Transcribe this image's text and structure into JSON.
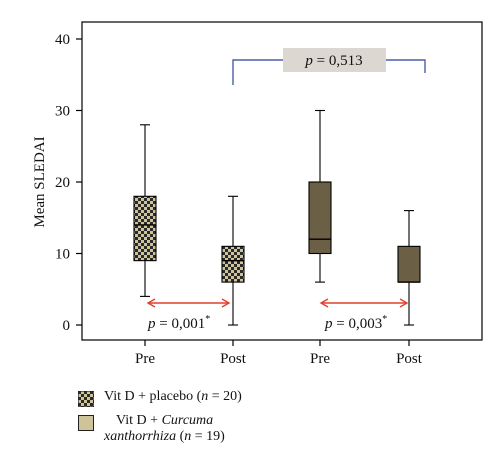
{
  "colors": {
    "checker_dark": "#2a2a2a",
    "checker_light": "#cfc39a",
    "olive": "#6b6045",
    "arrow_red": "#e0412f",
    "bracket_blue": "#4a5fa8",
    "pbox_fill": "#ddd7d2",
    "axis": "#000000"
  },
  "chart_data": {
    "type": "boxplot",
    "ylabel": "Mean SLEDAI",
    "ylim": [
      0,
      40
    ],
    "yticks": [
      0,
      10,
      20,
      30,
      40
    ],
    "categories": [
      "Pre",
      "Post",
      "Pre",
      "Post"
    ],
    "boxes": [
      {
        "group": "Vit D + placebo",
        "timepoint": "Pre",
        "min": 4,
        "q1": 9,
        "median": 14,
        "q3": 18,
        "max": 28
      },
      {
        "group": "Vit D + placebo",
        "timepoint": "Post",
        "min": 0,
        "q1": 6,
        "median": 9,
        "q3": 11,
        "max": 18
      },
      {
        "group": "Vit D + Curcuma xanthorrhiza",
        "timepoint": "Pre",
        "min": 6,
        "q1": 10,
        "median": 12,
        "q3": 20,
        "max": 30
      },
      {
        "group": "Vit D + Curcuma xanthorrhiza",
        "timepoint": "Post",
        "min": 0,
        "q1": 6,
        "median": 6,
        "q3": 11,
        "max": 16
      }
    ],
    "annotations": [
      {
        "id": "p1",
        "text": "= 0,001",
        "sup": "*",
        "between": [
          "Pre",
          "Post"
        ],
        "group": 1
      },
      {
        "id": "p2",
        "text": "= 0,003",
        "sup": "*",
        "between": [
          "Pre",
          "Post"
        ],
        "group": 2
      },
      {
        "id": "p3",
        "text": "= 0,513",
        "between": [
          "Post group 1",
          "Post group 2"
        ]
      }
    ],
    "legend": [
      {
        "label": "Vit D + placebo (",
        "n_label": "n",
        "n_value": " = 20)"
      },
      {
        "label_line1": "Vit D + ",
        "label_italic1": "Curcuma",
        "label_italic2": "xanthorrhiza",
        "n_label": "n",
        "n_value": " = 19)"
      }
    ]
  }
}
